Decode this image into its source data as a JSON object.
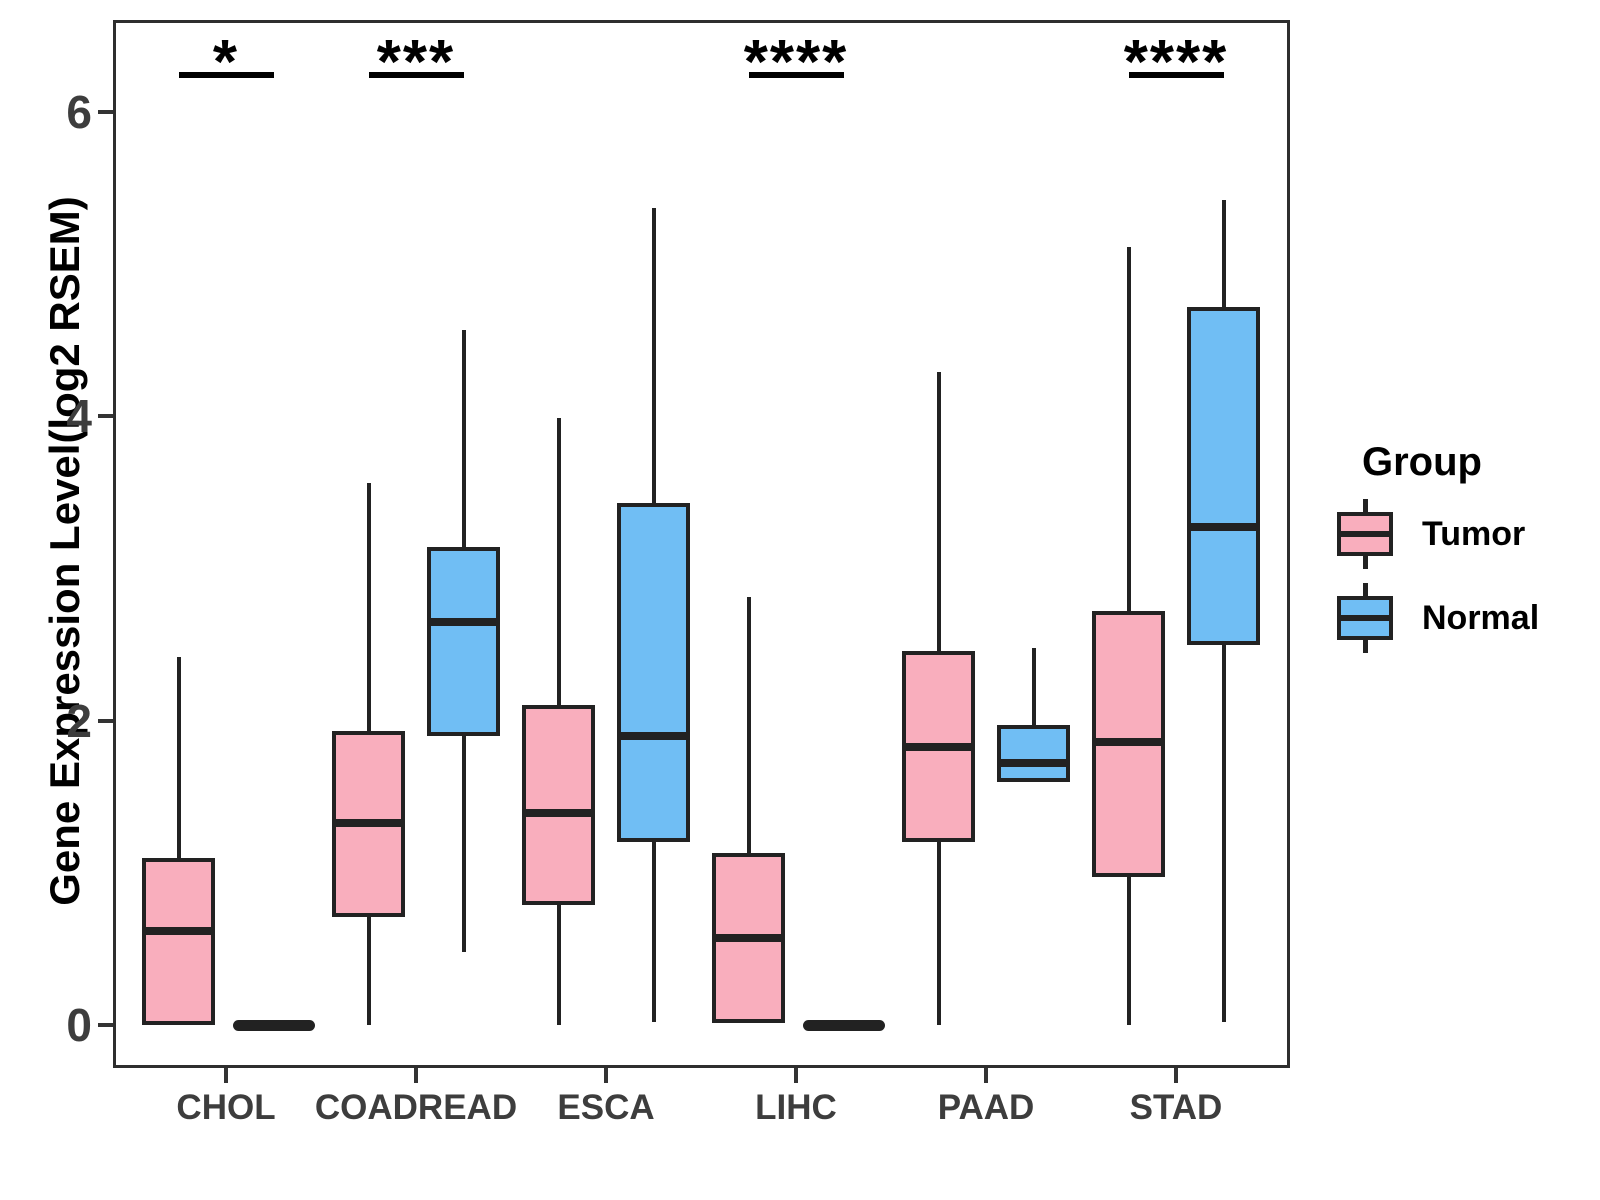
{
  "y_axis": {
    "title": "Gene Expression Level(log2 RSEM)",
    "ticks": [
      0,
      2,
      4,
      6
    ]
  },
  "x_axis": {
    "categories": [
      "CHOL",
      "COADREAD",
      "ESCA",
      "LIHC",
      "PAAD",
      "STAD"
    ]
  },
  "legend": {
    "title": "Group",
    "entries": [
      {
        "label": "Tumor",
        "color": "#F9AEBD"
      },
      {
        "label": "Normal",
        "color": "#70BEF4"
      }
    ]
  },
  "colors": {
    "tumor_fill": "#F9AEBD",
    "normal_fill": "#70BEF4",
    "box_border": "#222222",
    "panel_border": "#2e2e2e",
    "axis_text": "#3d3d3d"
  },
  "chart_data": {
    "type": "grouped_boxplot",
    "ylabel": "Gene Expression Level(log2 RSEM)",
    "ylim": [
      -0.28,
      6.6
    ],
    "y_ticks": [
      0,
      2,
      4,
      6
    ],
    "grid": false,
    "legend_position": "right",
    "categories": [
      "CHOL",
      "COADREAD",
      "ESCA",
      "LIHC",
      "PAAD",
      "STAD"
    ],
    "groups": [
      "Tumor",
      "Normal"
    ],
    "series": [
      {
        "category": "CHOL",
        "group": "Tumor",
        "min": 0,
        "q1": 0,
        "median": 0.62,
        "q3": 1.1,
        "max": 2.42,
        "flat": false
      },
      {
        "category": "CHOL",
        "group": "Normal",
        "min": 0,
        "q1": 0,
        "median": 0,
        "q3": 0,
        "max": 0,
        "flat": true
      },
      {
        "category": "COADREAD",
        "group": "Tumor",
        "min": 0,
        "q1": 0.71,
        "median": 1.33,
        "q3": 1.93,
        "max": 3.56,
        "flat": false
      },
      {
        "category": "COADREAD",
        "group": "Normal",
        "min": 0.48,
        "q1": 1.9,
        "median": 2.65,
        "q3": 3.14,
        "max": 4.57,
        "flat": false
      },
      {
        "category": "ESCA",
        "group": "Tumor",
        "min": 0,
        "q1": 0.79,
        "median": 1.39,
        "q3": 2.1,
        "max": 3.99,
        "flat": false
      },
      {
        "category": "ESCA",
        "group": "Normal",
        "min": 0.02,
        "q1": 1.2,
        "median": 1.9,
        "q3": 3.43,
        "max": 5.37,
        "flat": false
      },
      {
        "category": "LIHC",
        "group": "Tumor",
        "min": 0,
        "q1": 0.01,
        "median": 0.57,
        "q3": 1.13,
        "max": 2.81,
        "flat": false
      },
      {
        "category": "LIHC",
        "group": "Normal",
        "min": 0,
        "q1": 0,
        "median": 0,
        "q3": 0,
        "max": 0,
        "flat": true
      },
      {
        "category": "PAAD",
        "group": "Tumor",
        "min": 0,
        "q1": 1.2,
        "median": 1.83,
        "q3": 2.46,
        "max": 4.29,
        "flat": false
      },
      {
        "category": "PAAD",
        "group": "Normal",
        "min": 1.6,
        "q1": 1.6,
        "median": 1.72,
        "q3": 1.97,
        "max": 2.48,
        "flat": false
      },
      {
        "category": "STAD",
        "group": "Tumor",
        "min": 0,
        "q1": 0.97,
        "median": 1.86,
        "q3": 2.72,
        "max": 5.11,
        "flat": false
      },
      {
        "category": "STAD",
        "group": "Normal",
        "min": 0.02,
        "q1": 2.5,
        "median": 3.27,
        "q3": 4.72,
        "max": 5.42,
        "flat": false
      }
    ],
    "significance": [
      {
        "category": "CHOL",
        "label": "*"
      },
      {
        "category": "COADREAD",
        "label": "***"
      },
      {
        "category": "LIHC",
        "label": "****"
      },
      {
        "category": "STAD",
        "label": "****"
      }
    ]
  }
}
